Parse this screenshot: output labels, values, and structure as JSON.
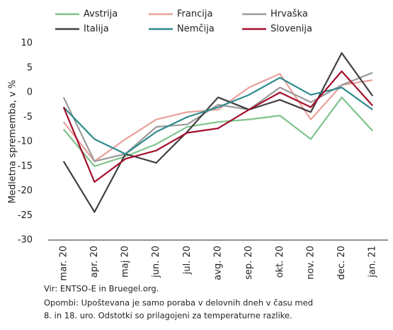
{
  "chart_data": {
    "type": "line",
    "y_label": "Medletna sprememba, v %",
    "categories": [
      "mar. 20",
      "apr. 20",
      "maj 20",
      "jun. 20",
      "jul. 20",
      "avg. 20",
      "sep. 20",
      "okt. 20",
      "nov. 20",
      "dec. 20",
      "jan. 21"
    ],
    "series": [
      {
        "name": "Avstrija",
        "color": "#7fc48c",
        "values": [
          -7.5,
          -15,
          -13,
          -10.5,
          -7,
          -6,
          -5.5,
          -4.7,
          -9.5,
          -1,
          -7.8
        ]
      },
      {
        "name": "Francija",
        "color": "#e8a19b",
        "values": [
          -6,
          -14,
          -9.5,
          -5.5,
          -4,
          -3.5,
          1,
          3.8,
          -5.5,
          1.5,
          2.5
        ]
      },
      {
        "name": "Hrvaška",
        "color": "#9a9a9a",
        "values": [
          -1,
          -14,
          -12.5,
          -7,
          -6.5,
          -2.5,
          -3.5,
          1,
          -2,
          1.5,
          4
        ]
      },
      {
        "name": "Italija",
        "color": "#404040",
        "values": [
          -14,
          -24.3,
          -12.5,
          -14.3,
          -8,
          -1,
          -3.5,
          -1.5,
          -4,
          8,
          -0.7
        ]
      },
      {
        "name": "Nemčija",
        "color": "#2e8a8c",
        "values": [
          -3,
          -9.5,
          -12.5,
          -8,
          -5,
          -3,
          -0.5,
          3,
          -0.5,
          1,
          -3.5
        ]
      },
      {
        "name": "Slovenija",
        "color": "#a3102c",
        "values": [
          -3,
          -18.2,
          -13.5,
          -11.8,
          -8.2,
          -7.3,
          -3.5,
          0,
          -3,
          4.3,
          -2.7
        ]
      }
    ],
    "ylim": [
      -30,
      10
    ],
    "yticks": [
      -30,
      -25,
      -20,
      -15,
      -10,
      -5,
      0,
      5,
      10
    ],
    "source": "Vir: ENTSO-E in Bruegel.org.",
    "notes": [
      "Opombi: Upoštevana je samo poraba v delovnih dneh v času med",
      "8. in 18. uro. Odstotki so prilagojeni za temperaturne razlike."
    ]
  }
}
